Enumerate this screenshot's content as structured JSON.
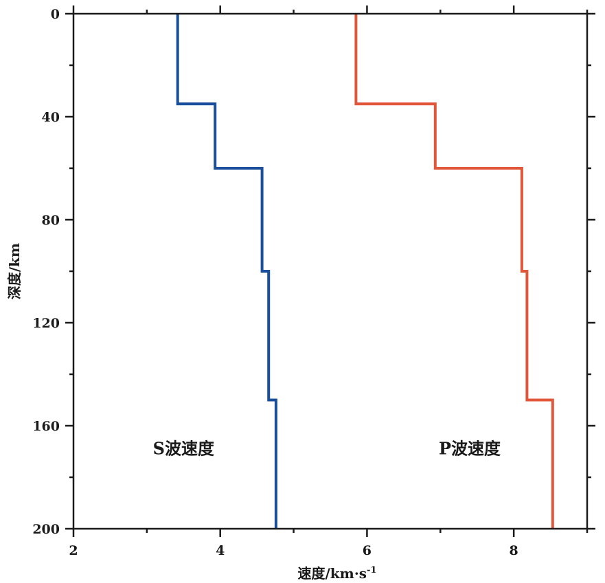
{
  "chart_data": {
    "type": "line",
    "xlabel": "速度/km·s",
    "xlabel_sup": "-1",
    "ylabel": "深度/km",
    "xlim": [
      2,
      9
    ],
    "ylim": [
      0,
      200
    ],
    "y_inverted": true,
    "x_ticks": [
      2,
      4,
      6,
      8
    ],
    "y_ticks": [
      0,
      40,
      80,
      120,
      160,
      200
    ],
    "x_minor_ticks": [
      3,
      5,
      7,
      9
    ],
    "y_minor_ticks": [
      20,
      60,
      100,
      140,
      180
    ],
    "grid": false,
    "legend": "none",
    "annotations": [
      {
        "text": "S波速度",
        "x": 3.5,
        "y": 171
      },
      {
        "text": "P波速度",
        "x": 7.4,
        "y": 171
      }
    ],
    "series": [
      {
        "color": "#1a4f9c",
        "depth": [
          0,
          35,
          35,
          60,
          60,
          100,
          100,
          150,
          150,
          200
        ],
        "velocity": [
          3.42,
          3.42,
          3.93,
          3.93,
          4.57,
          4.57,
          4.66,
          4.66,
          4.76,
          4.76
        ]
      },
      {
        "color": "#e0573a",
        "depth": [
          0,
          35,
          35,
          60,
          60,
          100,
          100,
          150,
          150,
          200
        ],
        "velocity": [
          5.85,
          5.85,
          6.93,
          6.93,
          8.11,
          8.11,
          8.18,
          8.18,
          8.53,
          8.53
        ]
      }
    ]
  }
}
